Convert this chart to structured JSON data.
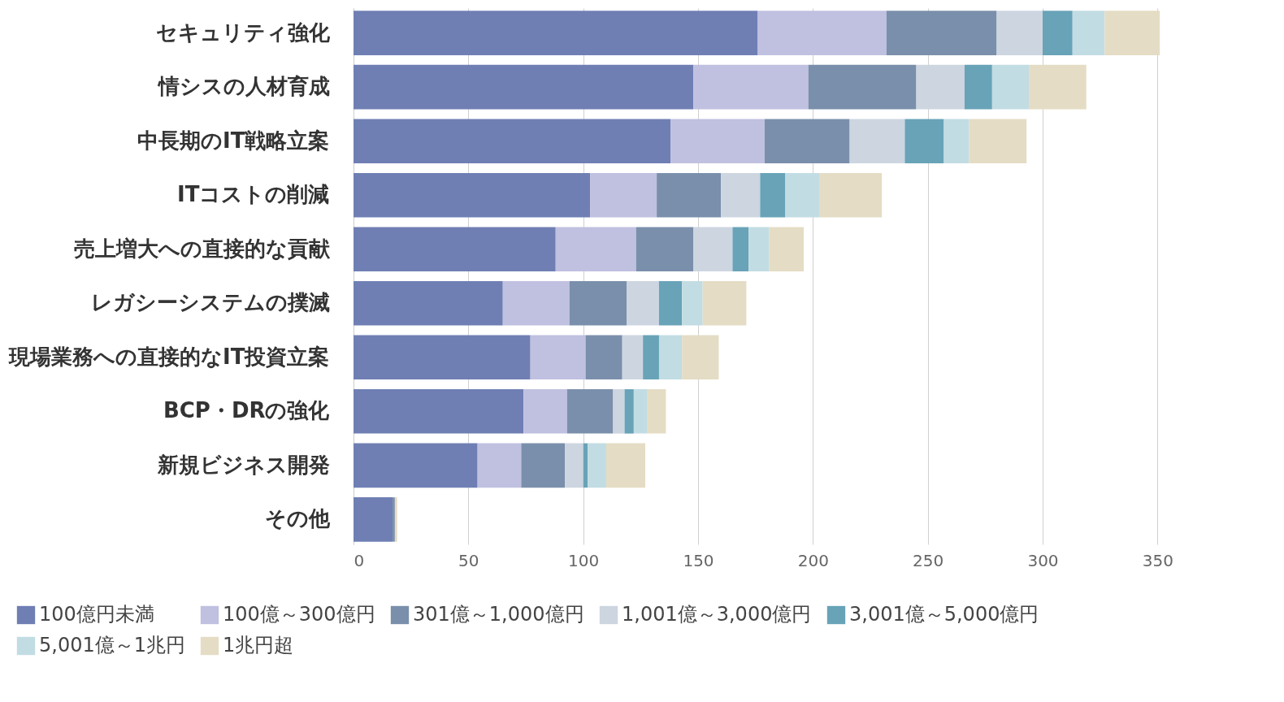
{
  "chart_data": {
    "type": "bar",
    "orientation": "horizontal",
    "stacked": true,
    "categories": [
      "セキュリティ強化",
      "情シスの人材育成",
      "中長期のIT戦略立案",
      "ITコストの削減",
      "売上増大への直接的な貢献",
      "レガシーシステムの撲滅",
      "現場業務への直接的なIT投資立案",
      "BCP・DRの強化",
      "新規ビジネス開発",
      "その他"
    ],
    "series": [
      {
        "name": "100億円未満",
        "color": "#6f7fb4",
        "values": [
          176,
          148,
          138,
          103,
          88,
          65,
          77,
          74,
          54,
          17
        ]
      },
      {
        "name": "100億～300億円",
        "color": "#c0c0e0",
        "values": [
          56,
          50,
          41,
          29,
          35,
          29,
          24,
          19,
          19,
          0
        ]
      },
      {
        "name": "301億～1,000億円",
        "color": "#7a8fab",
        "values": [
          48,
          47,
          37,
          28,
          25,
          25,
          16,
          20,
          19,
          1
        ]
      },
      {
        "name": "1,001億～3,000億円",
        "color": "#cdd5e0",
        "values": [
          20,
          21,
          24,
          17,
          17,
          14,
          9,
          5,
          8,
          0
        ]
      },
      {
        "name": "3,001億～5,000億円",
        "color": "#68a3b8",
        "values": [
          13,
          12,
          17,
          11,
          7,
          10,
          7,
          4,
          2,
          0
        ]
      },
      {
        "name": "5,001億～1兆円",
        "color": "#c2dce3",
        "values": [
          14,
          16,
          11,
          15,
          9,
          9,
          10,
          6,
          8,
          0
        ]
      },
      {
        "name": "1兆円超",
        "color": "#e4dcc4",
        "values": [
          24,
          25,
          25,
          27,
          15,
          19,
          16,
          8,
          17,
          1
        ]
      }
    ],
    "xlim": [
      0,
      352
    ],
    "xticks": [
      0,
      50,
      100,
      150,
      200,
      250,
      300,
      350
    ],
    "grid": "x",
    "legend": "bottom"
  }
}
